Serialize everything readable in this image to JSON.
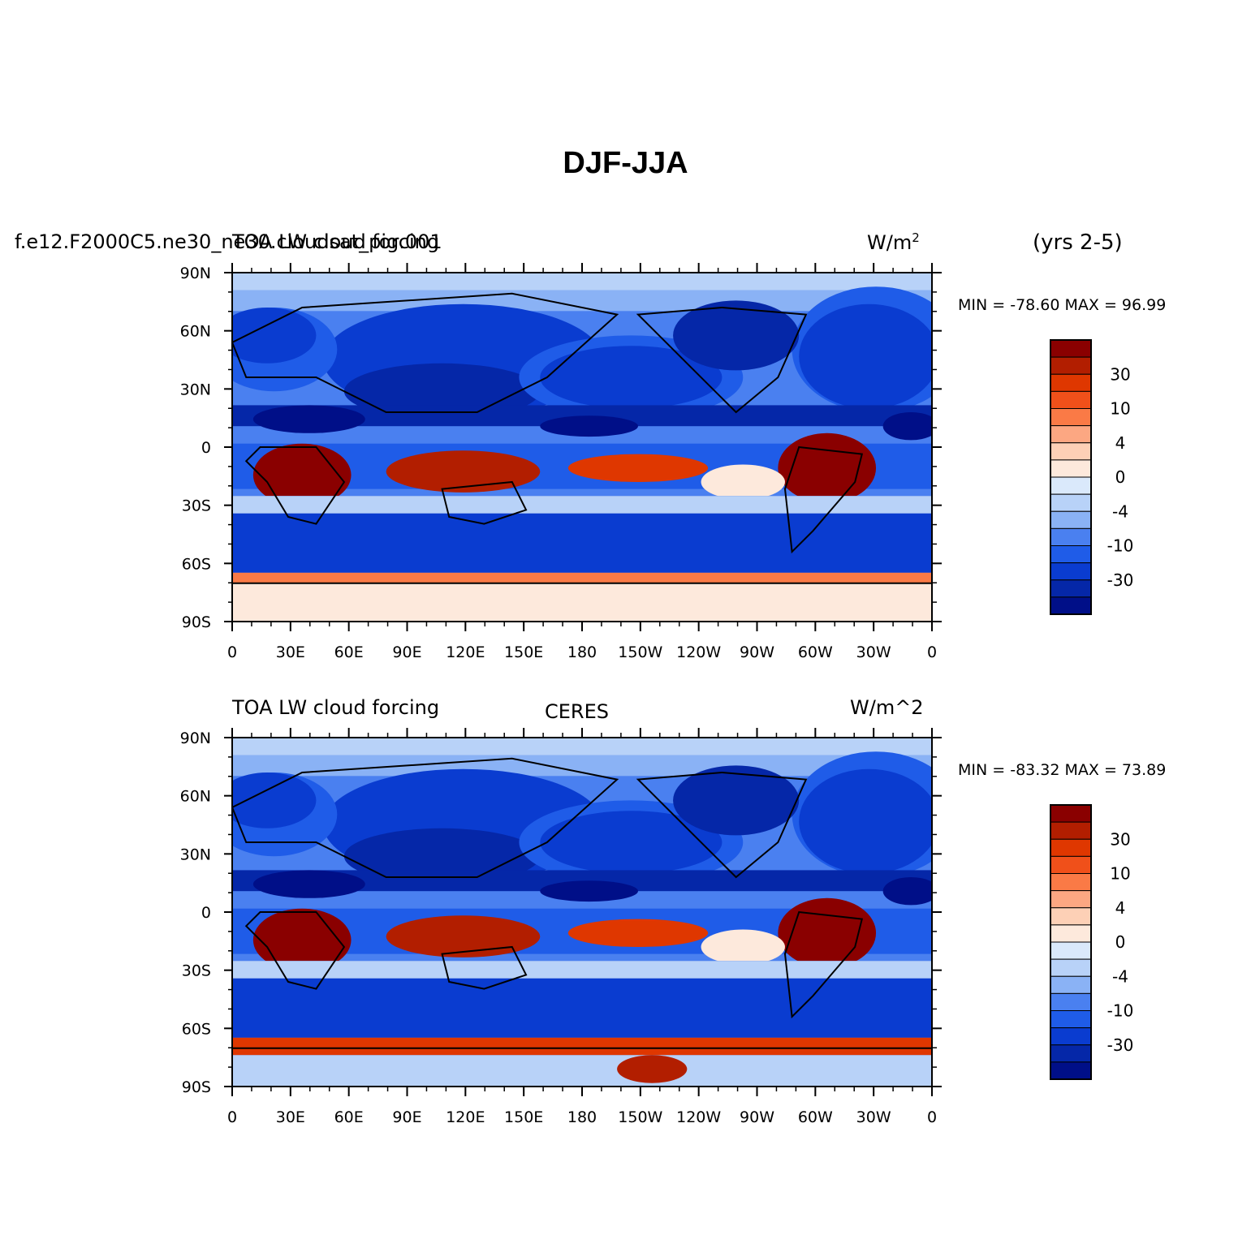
{
  "title": "DJF-JJA",
  "panels": [
    {
      "left_string": "f.e12.F2000C5.ne30_ne30.cloudsat_pig.001",
      "center_string": "TOA LW cloud forcing",
      "units": "W/m",
      "units_sup": "2",
      "extra_label": "(yrs 2-5)",
      "min_label": "MIN = ",
      "min_value": "-78.60",
      "max_label": "MAX = ",
      "max_value": "96.99"
    },
    {
      "left_string": "TOA LW cloud forcing",
      "center_string": "CERES",
      "units": "W/m^2",
      "min_label": "MIN = ",
      "min_value": "-83.32",
      "max_label": "MAX = ",
      "max_value": "73.89"
    }
  ],
  "lat_labels": [
    "90N",
    "60N",
    "30N",
    "0",
    "30S",
    "60S",
    "90S"
  ],
  "lon_labels": [
    "0",
    "30E",
    "60E",
    "90E",
    "120E",
    "150E",
    "180",
    "150W",
    "120W",
    "90W",
    "60W",
    "30W",
    "0"
  ],
  "colorbar": {
    "labels": [
      "30",
      "10",
      "4",
      "0",
      "-4",
      "-10",
      "-30"
    ],
    "colors": [
      "#8a0000",
      "#b21e00",
      "#df3700",
      "#f0501a",
      "#fa7a46",
      "#fca782",
      "#fdd0b6",
      "#fde9dc",
      "#dae9fb",
      "#b8d2f8",
      "#8ab2f5",
      "#4a80f0",
      "#1f5ce8",
      "#0a3cd0",
      "#0527a8",
      "#000f88"
    ]
  },
  "chart_data": {
    "type": "heatmap",
    "variable": "TOA LW cloud forcing",
    "units": "W/m^2",
    "projection": "cylindrical equidistant, centered on 180",
    "lat_range": [
      -90,
      90
    ],
    "lon_range": [
      0,
      360
    ],
    "contour_levels": [
      -40,
      -30,
      -20,
      -10,
      -6,
      -4,
      -2,
      0,
      2,
      4,
      6,
      10,
      20,
      30,
      40
    ],
    "panels": [
      {
        "name": "f.e12.F2000C5.ne30_ne30.cloudsat_pig.001",
        "min": -78.6,
        "max": 96.99
      },
      {
        "name": "CERES",
        "min": -83.32,
        "max": 73.89
      }
    ]
  }
}
